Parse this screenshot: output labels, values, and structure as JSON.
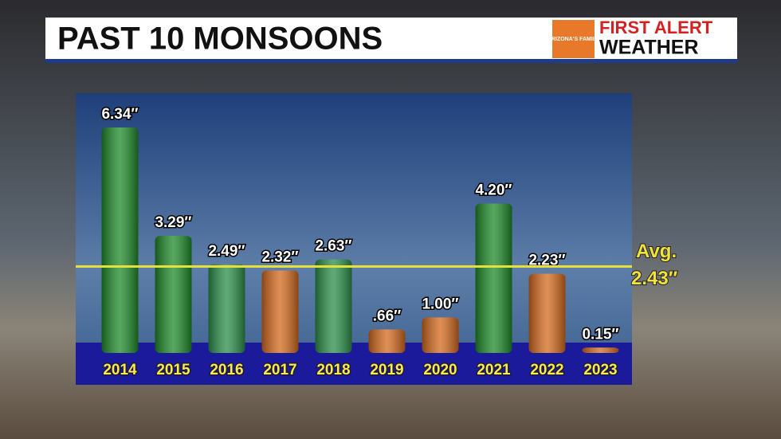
{
  "chart_data": {
    "type": "bar",
    "title": "PAST 10 MONSOONS",
    "logo": {
      "brand": "ARIZONA'S FAMILY",
      "line1": "FIRST ALERT",
      "line2": "WEATHER"
    },
    "categories": [
      "2014",
      "2015",
      "2016",
      "2017",
      "2018",
      "2019",
      "2020",
      "2021",
      "2022",
      "2023"
    ],
    "values": [
      6.34,
      3.29,
      2.49,
      2.32,
      2.63,
      0.66,
      1.0,
      4.2,
      2.23,
      0.15
    ],
    "value_labels": [
      "6.34″",
      "3.29″",
      "2.49″",
      "2.32″",
      "2.63″",
      ".66″",
      "1.00″",
      "4.20″",
      "2.23″",
      "0.15″"
    ],
    "colors": [
      "#1f8a2a",
      "#1f8a2a",
      "#2c8f4a",
      "#d46a1e",
      "#2c8f4a",
      "#d46a1e",
      "#d46a1e",
      "#1f8a2a",
      "#d46a1e",
      "#d46a1e"
    ],
    "average": {
      "label": "Avg.",
      "value": 2.43,
      "value_label": "2.43″",
      "color": "#e8e03a"
    }
  }
}
